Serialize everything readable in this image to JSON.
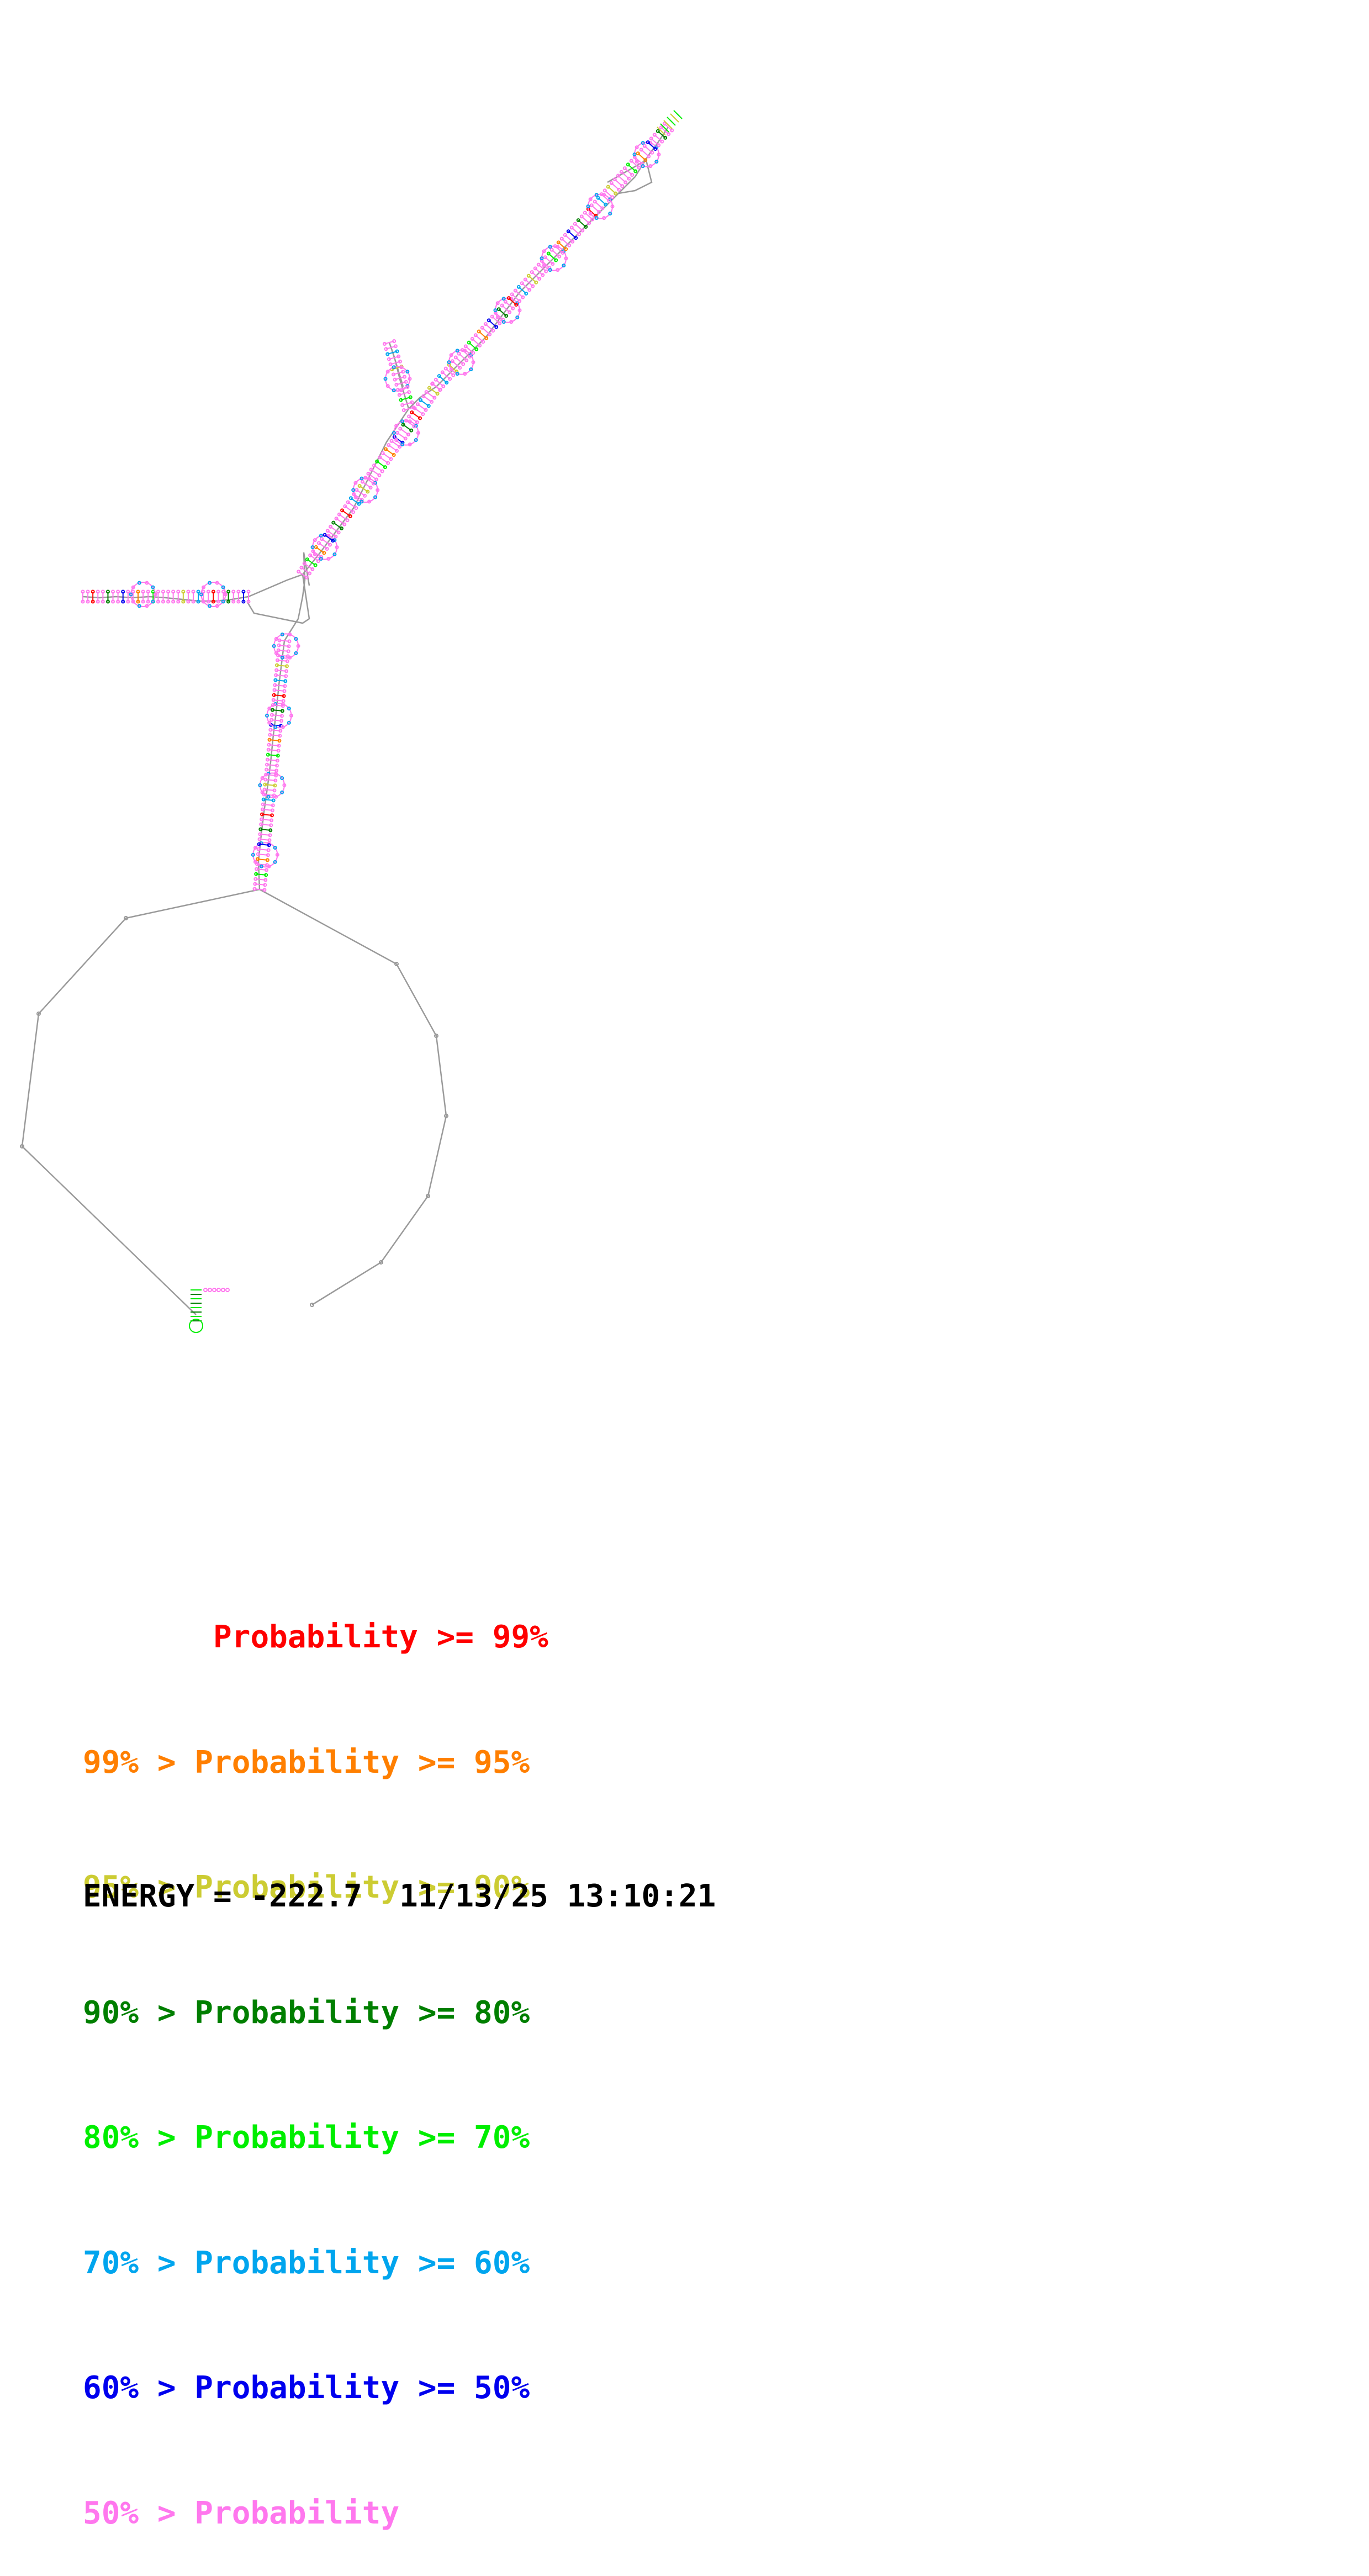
{
  "legend": {
    "entries": [
      {
        "prefix": "       ",
        "text": "Probability >= 99%",
        "color": "#ff0000"
      },
      {
        "prefix": "99% > ",
        "text": "Probability >= 95%",
        "color": "#ff7f00"
      },
      {
        "prefix": "95% > ",
        "text": "Probability >= 90%",
        "color": "#cccc33"
      },
      {
        "prefix": "90% > ",
        "text": "Probability >= 80%",
        "color": "#007f00"
      },
      {
        "prefix": "80% > ",
        "text": "Probability >= 70%",
        "color": "#00ee00"
      },
      {
        "prefix": "70% > ",
        "text": "Probability >= 60%",
        "color": "#00a5ee"
      },
      {
        "prefix": "60% > ",
        "text": "Probability >= 50%",
        "color": "#0000ee"
      },
      {
        "prefix": "50% > ",
        "text": "Probability",
        "color": "#ff77ee"
      }
    ]
  },
  "footer": {
    "energy_label": "ENERGY = ",
    "energy_value": "-222.7",
    "date": "11/13/25",
    "time": "13:10:21"
  },
  "colors": {
    "backbone": "#9a9a9a",
    "base_default": "#ff77ee",
    "stem_mix": [
      "#ff77ee",
      "#0000ee",
      "#00a5ee",
      "#00ee00",
      "#007f00",
      "#cccc33",
      "#ff7f00",
      "#ff0000"
    ]
  }
}
